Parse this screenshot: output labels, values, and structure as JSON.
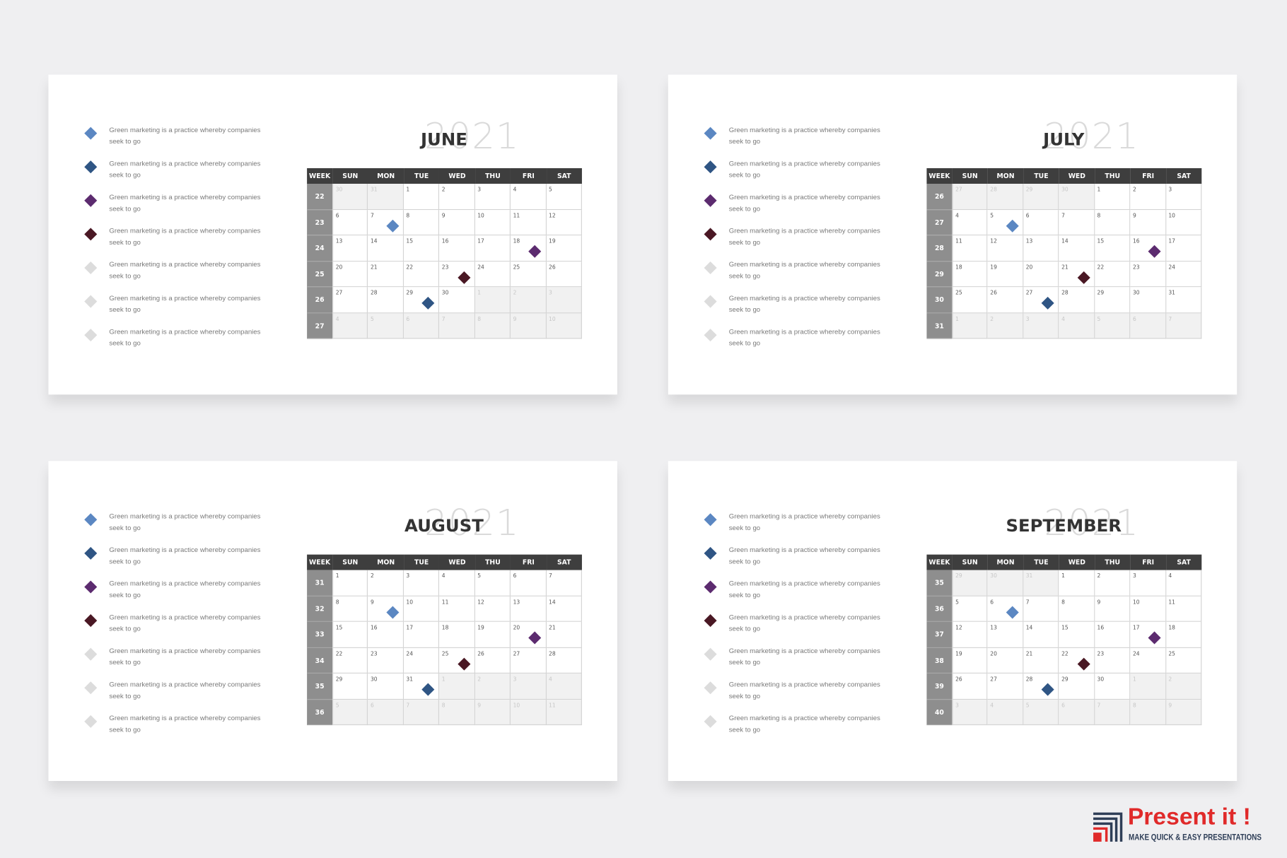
{
  "slides": [
    {
      "month": "JUNE",
      "year": "2021",
      "legend": [
        {
          "text": "Green marketing is a practice whereby companies seek to go",
          "color": "#5b87c2"
        },
        {
          "text": "Green marketing is a practice whereby companies seek to go",
          "color": "#2f5584"
        },
        {
          "text": "Green marketing is a practice whereby companies seek to go",
          "color": "#5c2b6f"
        },
        {
          "text": "Green marketing is a practice whereby companies seek to go",
          "color": "#4a1824"
        },
        {
          "text": "Green marketing is a practice whereby companies seek to go",
          "color": "#dcdcdc"
        },
        {
          "text": "Green marketing is a practice whereby companies seek to go",
          "color": "#dcdcdc"
        },
        {
          "text": "Green marketing is a practice whereby companies seek to go",
          "color": "#dcdcdc"
        }
      ],
      "headers": [
        "WEEK",
        "SUN",
        "MON",
        "TUE",
        "WED",
        "THU",
        "FRI",
        "SAT"
      ],
      "weeks": [
        "22",
        "23",
        "24",
        "25",
        "26",
        "27"
      ],
      "days": [
        [
          "30",
          "31",
          "1",
          "2",
          "3",
          "4",
          "5"
        ],
        [
          "6",
          "7",
          "8",
          "9",
          "10",
          "11",
          "12"
        ],
        [
          "13",
          "14",
          "15",
          "16",
          "17",
          "18",
          "19"
        ],
        [
          "20",
          "21",
          "22",
          "23",
          "24",
          "25",
          "26"
        ],
        [
          "27",
          "28",
          "29",
          "30",
          "1",
          "2",
          "3"
        ],
        [
          "4",
          "5",
          "6",
          "7",
          "8",
          "9",
          "10"
        ]
      ]
    },
    {
      "month": "JULY",
      "year": "2021",
      "legend": [
        {
          "text": "Green marketing is a practice whereby companies seek to go",
          "color": "#5b87c2"
        },
        {
          "text": "Green marketing is a practice whereby companies seek to go",
          "color": "#2f5584"
        },
        {
          "text": "Green marketing is a practice whereby companies seek to go",
          "color": "#5c2b6f"
        },
        {
          "text": "Green marketing is a practice whereby companies seek to go",
          "color": "#4a1824"
        },
        {
          "text": "Green marketing is a practice whereby companies seek to go",
          "color": "#dcdcdc"
        },
        {
          "text": "Green marketing is a practice whereby companies seek to go",
          "color": "#dcdcdc"
        },
        {
          "text": "Green marketing is a practice whereby companies seek to go",
          "color": "#dcdcdc"
        }
      ],
      "headers": [
        "WEEK",
        "SUN",
        "MON",
        "TUE",
        "WED",
        "THU",
        "FRI",
        "SAT"
      ],
      "weeks": [
        "26",
        "27",
        "28",
        "29",
        "30",
        "31"
      ],
      "days": [
        [
          "27",
          "28",
          "29",
          "30",
          "1",
          "2",
          "3"
        ],
        [
          "4",
          "5",
          "6",
          "7",
          "8",
          "9",
          "10"
        ],
        [
          "11",
          "12",
          "13",
          "14",
          "15",
          "16",
          "17"
        ],
        [
          "18",
          "19",
          "20",
          "21",
          "22",
          "23",
          "24"
        ],
        [
          "25",
          "26",
          "27",
          "28",
          "29",
          "30",
          "31"
        ],
        [
          "1",
          "2",
          "3",
          "4",
          "5",
          "6",
          "7"
        ]
      ]
    },
    {
      "month": "AUGUST",
      "year": "2021",
      "legend": [
        {
          "text": "Green marketing is a practice whereby companies seek to go",
          "color": "#5b87c2"
        },
        {
          "text": "Green marketing is a practice whereby companies seek to go",
          "color": "#2f5584"
        },
        {
          "text": "Green marketing is a practice whereby companies seek to go",
          "color": "#5c2b6f"
        },
        {
          "text": "Green marketing is a practice whereby companies seek to go",
          "color": "#4a1824"
        },
        {
          "text": "Green marketing is a practice whereby companies seek to go",
          "color": "#dcdcdc"
        },
        {
          "text": "Green marketing is a practice whereby companies seek to go",
          "color": "#dcdcdc"
        },
        {
          "text": "Green marketing is a practice whereby companies seek to go",
          "color": "#dcdcdc"
        }
      ],
      "headers": [
        "WEEK",
        "SUN",
        "MON",
        "TUE",
        "WED",
        "THU",
        "FRI",
        "SAT"
      ],
      "weeks": [
        "31",
        "32",
        "33",
        "34",
        "35",
        "36"
      ],
      "days": [
        [
          "1",
          "2",
          "3",
          "4",
          "5",
          "6",
          "7"
        ],
        [
          "8",
          "9",
          "10",
          "11",
          "12",
          "13",
          "14"
        ],
        [
          "15",
          "16",
          "17",
          "18",
          "19",
          "20",
          "21"
        ],
        [
          "22",
          "23",
          "24",
          "25",
          "26",
          "27",
          "28"
        ],
        [
          "29",
          "30",
          "31",
          "1",
          "2",
          "3",
          "4"
        ],
        [
          "5",
          "6",
          "7",
          "8",
          "9",
          "10",
          "11"
        ]
      ]
    },
    {
      "month": "SEPTEMBER",
      "year": "2021",
      "legend": [
        {
          "text": "Green marketing is a practice whereby companies seek to go",
          "color": "#5b87c2"
        },
        {
          "text": "Green marketing is a practice whereby companies seek to go",
          "color": "#2f5584"
        },
        {
          "text": "Green marketing is a practice whereby companies seek to go",
          "color": "#5c2b6f"
        },
        {
          "text": "Green marketing is a practice whereby companies seek to go",
          "color": "#4a1824"
        },
        {
          "text": "Green marketing is a practice whereby companies seek to go",
          "color": "#dcdcdc"
        },
        {
          "text": "Green marketing is a practice whereby companies seek to go",
          "color": "#dcdcdc"
        },
        {
          "text": "Green marketing is a practice whereby companies seek to go",
          "color": "#dcdcdc"
        }
      ],
      "headers": [
        "WEEK",
        "SUN",
        "MON",
        "TUE",
        "WED",
        "THU",
        "FRI",
        "SAT"
      ],
      "weeks": [
        "35",
        "36",
        "37",
        "38",
        "39",
        "40"
      ],
      "days": [
        [
          "29",
          "30",
          "31",
          "1",
          "2",
          "3",
          "4"
        ],
        [
          "5",
          "6",
          "7",
          "8",
          "9",
          "10",
          "11"
        ],
        [
          "12",
          "13",
          "14",
          "15",
          "16",
          "17",
          "18"
        ],
        [
          "19",
          "20",
          "21",
          "22",
          "23",
          "24",
          "25"
        ],
        [
          "26",
          "27",
          "28",
          "29",
          "30",
          "1",
          "2"
        ],
        [
          "3",
          "4",
          "5",
          "6",
          "7",
          "8",
          "9"
        ]
      ]
    }
  ],
  "brand": {
    "name": "Present it !",
    "tagline": "MAKE QUICK & EASY PRESENTATIONS"
  }
}
